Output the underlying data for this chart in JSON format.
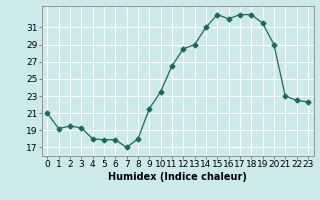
{
  "x": [
    0,
    1,
    2,
    3,
    4,
    5,
    6,
    7,
    8,
    9,
    10,
    11,
    12,
    13,
    14,
    15,
    16,
    17,
    18,
    19,
    20,
    21,
    22,
    23
  ],
  "y": [
    21.0,
    19.2,
    19.5,
    19.3,
    18.0,
    17.9,
    17.9,
    17.0,
    18.0,
    21.5,
    23.5,
    26.5,
    28.5,
    29.0,
    31.0,
    32.5,
    32.0,
    32.5,
    32.5,
    31.5,
    29.0,
    23.0,
    22.5,
    22.3
  ],
  "line_color": "#1a6b5a",
  "marker": "D",
  "marker_size": 2.5,
  "bg_color": "#cce9ec",
  "grid_color": "#ffffff",
  "xlabel": "Humidex (Indice chaleur)",
  "xlabel_fontsize": 7,
  "tick_fontsize": 6.5,
  "xlim": [
    -0.5,
    23.5
  ],
  "ylim": [
    16.0,
    33.5
  ],
  "yticks": [
    17,
    19,
    21,
    23,
    25,
    27,
    29,
    31
  ],
  "xticks": [
    0,
    1,
    2,
    3,
    4,
    5,
    6,
    7,
    8,
    9,
    10,
    11,
    12,
    13,
    14,
    15,
    16,
    17,
    18,
    19,
    20,
    21,
    22,
    23
  ]
}
